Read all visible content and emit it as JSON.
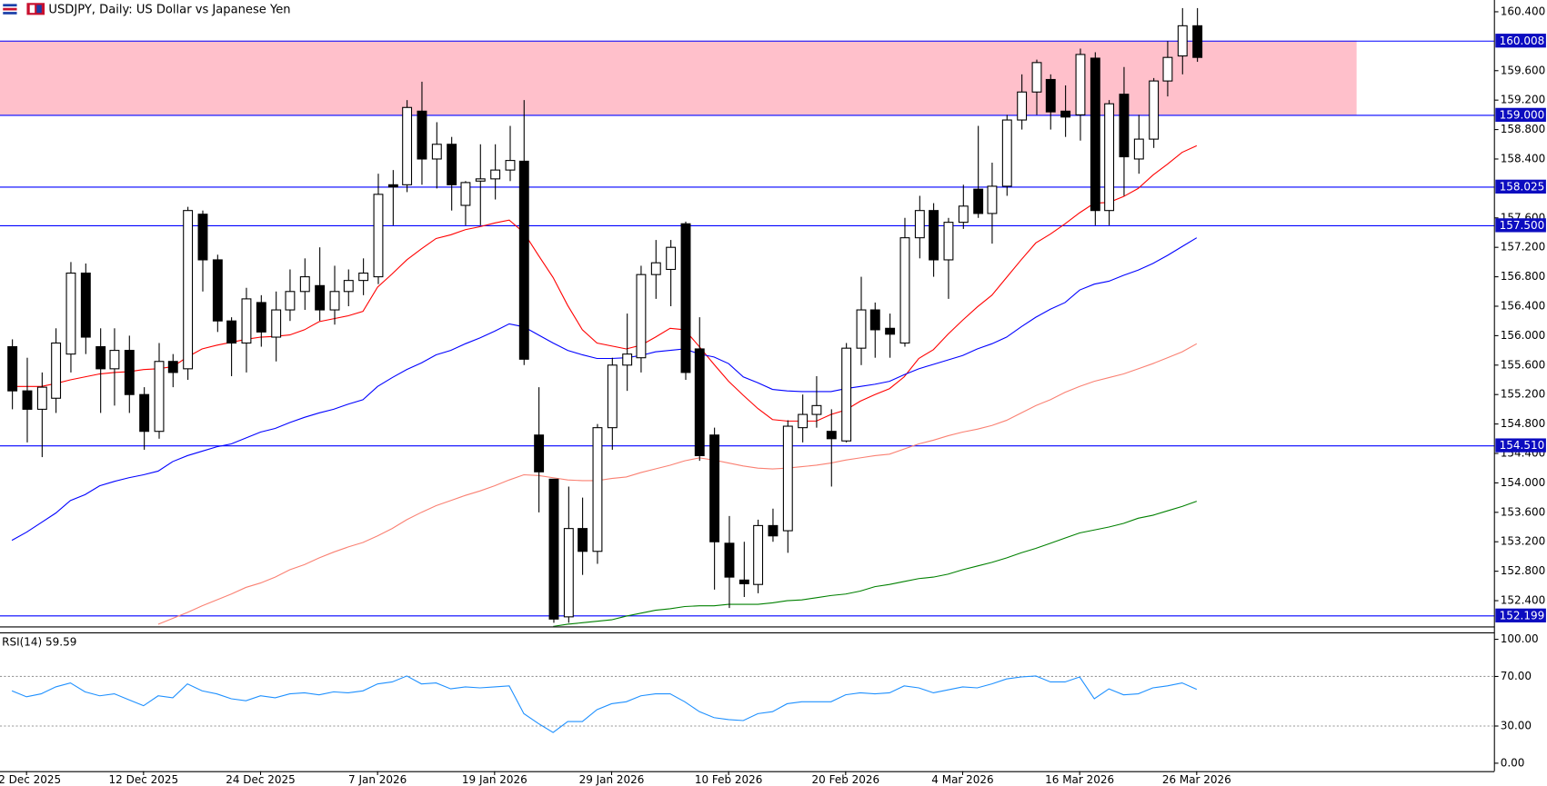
{
  "chart_data": [
    {
      "type": "candlestick",
      "title": "USDJPY, Daily:  US Dollar vs Japanese Yen",
      "categories": [
        null,
        "2 Dec 2025",
        null,
        null,
        null,
        null,
        null,
        null,
        null,
        "12 Dec 2025",
        null,
        null,
        null,
        null,
        null,
        null,
        null,
        "24 Dec 2025",
        null,
        null,
        null,
        null,
        null,
        null,
        null,
        "7 Jan 2026",
        null,
        null,
        null,
        null,
        null,
        null,
        null,
        "19 Jan 2026",
        null,
        null,
        null,
        null,
        null,
        null,
        null,
        "29 Jan 2026",
        null,
        null,
        null,
        null,
        null,
        null,
        null,
        "10 Feb 2026",
        null,
        null,
        null,
        null,
        null,
        null,
        null,
        "20 Feb 2026",
        null,
        null,
        null,
        null,
        null,
        null,
        null,
        "4 Mar 2026",
        null,
        null,
        null,
        null,
        null,
        null,
        null,
        "16 Mar 2026",
        null,
        null,
        null,
        null,
        null,
        null,
        null,
        "26 Mar 2026"
      ],
      "open": [
        155.85,
        155.25,
        155.0,
        155.15,
        155.75,
        156.85,
        155.85,
        155.55,
        155.8,
        155.2,
        154.7,
        155.65,
        155.55,
        157.65,
        157.03,
        156.2,
        155.9,
        156.45,
        155.98,
        156.35,
        156.6,
        156.68,
        156.35,
        156.6,
        156.75,
        156.8,
        158.05,
        158.05,
        159.05,
        158.4,
        158.6,
        157.77,
        158.1,
        158.13,
        158.25,
        158.37,
        154.65,
        154.05,
        152.18,
        153.38,
        153.07,
        154.75,
        155.6,
        155.7,
        156.83,
        156.9,
        157.52,
        155.82,
        154.65,
        153.18,
        152.68,
        152.62,
        153.42,
        153.35,
        154.75,
        154.93,
        154.7,
        154.57,
        155.83,
        156.35,
        156.1,
        155.9,
        157.33,
        157.7,
        157.03,
        157.54,
        157.99,
        157.66,
        158.03,
        158.93,
        159.31,
        159.48,
        159.05,
        159.0,
        159.77,
        157.7,
        159.28,
        158.4,
        158.67,
        159.46,
        159.8,
        160.21
      ],
      "high": [
        155.95,
        155.7,
        155.5,
        156.1,
        157.0,
        156.98,
        156.1,
        156.1,
        156.0,
        155.3,
        155.9,
        155.75,
        157.75,
        157.7,
        157.1,
        156.25,
        156.65,
        156.55,
        156.6,
        156.9,
        157.05,
        157.2,
        156.95,
        156.9,
        157.05,
        158.2,
        158.25,
        159.2,
        159.45,
        158.9,
        158.7,
        158.1,
        158.6,
        158.6,
        158.85,
        159.2,
        155.3,
        154.05,
        153.95,
        153.8,
        154.8,
        155.7,
        156.3,
        156.95,
        157.3,
        157.3,
        157.55,
        156.25,
        154.75,
        153.55,
        153.2,
        153.5,
        153.65,
        154.85,
        155.2,
        155.45,
        155.0,
        155.9,
        156.8,
        156.45,
        156.3,
        157.6,
        157.9,
        157.8,
        157.6,
        158.05,
        158.85,
        158.35,
        159.0,
        159.55,
        159.75,
        159.55,
        159.4,
        159.9,
        159.85,
        159.2,
        159.65,
        159.0,
        159.5,
        160.0,
        160.45,
        160.45
      ],
      "low": [
        155.0,
        154.55,
        154.35,
        154.95,
        155.5,
        155.75,
        154.95,
        155.05,
        154.95,
        154.45,
        154.6,
        155.3,
        155.4,
        156.6,
        156.05,
        155.45,
        155.5,
        155.85,
        155.65,
        156.2,
        156.35,
        156.2,
        156.15,
        156.4,
        156.55,
        156.7,
        157.5,
        157.95,
        158.05,
        158.0,
        157.7,
        157.5,
        157.5,
        157.85,
        158.1,
        155.6,
        153.6,
        152.1,
        152.1,
        152.75,
        152.9,
        154.45,
        155.25,
        155.5,
        156.5,
        156.4,
        155.4,
        154.3,
        152.55,
        152.3,
        152.45,
        152.5,
        153.2,
        153.05,
        154.55,
        154.75,
        153.95,
        154.55,
        155.6,
        155.7,
        155.7,
        155.85,
        157.05,
        156.8,
        156.5,
        157.45,
        157.6,
        157.25,
        157.9,
        158.8,
        159.0,
        158.8,
        158.7,
        158.65,
        157.5,
        157.5,
        157.9,
        158.2,
        158.55,
        159.25,
        159.55,
        159.72
      ],
      "close": [
        155.25,
        155.0,
        155.3,
        155.9,
        156.85,
        155.98,
        155.55,
        155.8,
        155.2,
        154.7,
        155.65,
        155.5,
        157.7,
        157.03,
        156.2,
        155.9,
        156.5,
        156.05,
        156.35,
        156.6,
        156.8,
        156.35,
        156.6,
        156.75,
        156.85,
        157.92,
        158.02,
        159.1,
        158.4,
        158.6,
        158.05,
        158.08,
        158.13,
        158.25,
        158.38,
        155.68,
        154.15,
        152.15,
        153.38,
        153.07,
        154.75,
        155.6,
        155.75,
        156.83,
        156.99,
        157.2,
        155.5,
        154.37,
        153.2,
        152.72,
        152.63,
        153.42,
        153.28,
        154.77,
        154.93,
        155.05,
        154.6,
        155.83,
        156.35,
        156.08,
        156.02,
        157.33,
        157.7,
        157.03,
        157.54,
        157.76,
        157.66,
        158.03,
        158.93,
        159.31,
        159.71,
        159.04,
        158.97,
        159.82,
        157.7,
        159.15,
        158.43,
        158.67,
        159.46,
        159.78,
        160.21,
        159.78
      ],
      "up_color": "#ffffff",
      "down_color": "#000000",
      "edge_color": "#000000",
      "series": [
        {
          "color": "#ff0000",
          "values": [
            155.31,
            155.31,
            155.31,
            155.35,
            155.4,
            155.44,
            155.48,
            155.5,
            155.51,
            155.54,
            155.55,
            155.58,
            155.71,
            155.82,
            155.87,
            155.91,
            155.95,
            155.98,
            155.99,
            156.01,
            156.08,
            156.19,
            156.23,
            156.27,
            156.33,
            156.66,
            156.84,
            157.03,
            157.18,
            157.32,
            157.37,
            157.44,
            157.48,
            157.53,
            157.57,
            157.4,
            157.09,
            156.79,
            156.41,
            156.08,
            155.9,
            155.86,
            155.82,
            155.87,
            155.98,
            156.1,
            156.08,
            155.85,
            155.61,
            155.38,
            155.19,
            155.01,
            154.86,
            154.84,
            154.84,
            154.84,
            154.93,
            154.99,
            155.11,
            155.2,
            155.28,
            155.44,
            155.69,
            155.81,
            156.02,
            156.21,
            156.39,
            156.55,
            156.79,
            157.03,
            157.26,
            157.38,
            157.52,
            157.67,
            157.8,
            157.81,
            157.89,
            158.0,
            158.18,
            158.33,
            158.49,
            158.58
          ]
        },
        {
          "color": "#0000ff",
          "values": [
            153.22,
            153.33,
            153.46,
            153.59,
            153.76,
            153.84,
            153.96,
            154.02,
            154.07,
            154.11,
            154.16,
            154.29,
            154.37,
            154.43,
            154.49,
            154.53,
            154.61,
            154.69,
            154.74,
            154.82,
            154.89,
            154.95,
            155.0,
            155.07,
            155.13,
            155.31,
            155.43,
            155.54,
            155.63,
            155.74,
            155.8,
            155.89,
            155.97,
            156.06,
            156.16,
            156.12,
            156.01,
            155.9,
            155.8,
            155.74,
            155.69,
            155.69,
            155.7,
            155.73,
            155.78,
            155.8,
            155.82,
            155.75,
            155.71,
            155.62,
            155.44,
            155.36,
            155.27,
            155.25,
            155.24,
            155.24,
            155.24,
            155.28,
            155.31,
            155.34,
            155.38,
            155.47,
            155.55,
            155.61,
            155.67,
            155.73,
            155.82,
            155.89,
            155.98,
            156.12,
            156.25,
            156.36,
            156.45,
            156.62,
            156.7,
            156.74,
            156.82,
            156.89,
            156.98,
            157.09,
            157.21,
            157.33
          ]
        },
        {
          "color": "#fa8072",
          "values": [
            null,
            null,
            null,
            null,
            null,
            null,
            null,
            null,
            null,
            null,
            152.08,
            152.16,
            152.24,
            152.33,
            152.41,
            152.49,
            152.58,
            152.64,
            152.72,
            152.82,
            152.89,
            152.98,
            153.06,
            153.13,
            153.19,
            153.28,
            153.38,
            153.5,
            153.6,
            153.69,
            153.76,
            153.83,
            153.89,
            153.96,
            154.04,
            154.11,
            154.1,
            154.07,
            154.04,
            154.03,
            154.03,
            154.06,
            154.08,
            154.14,
            154.19,
            154.24,
            154.3,
            154.34,
            154.31,
            154.27,
            154.23,
            154.2,
            154.19,
            154.2,
            154.22,
            154.24,
            154.27,
            154.31,
            154.34,
            154.37,
            154.39,
            154.46,
            154.53,
            154.58,
            154.64,
            154.69,
            154.73,
            154.78,
            154.85,
            154.95,
            155.05,
            155.13,
            155.23,
            155.31,
            155.38,
            155.43,
            155.48,
            155.55,
            155.62,
            155.7,
            155.78,
            155.89
          ]
        },
        {
          "color": "#008000",
          "values": [
            null,
            null,
            null,
            null,
            null,
            null,
            null,
            null,
            null,
            null,
            null,
            null,
            null,
            null,
            null,
            null,
            null,
            null,
            null,
            null,
            null,
            null,
            null,
            null,
            null,
            null,
            null,
            null,
            null,
            null,
            null,
            null,
            null,
            null,
            null,
            null,
            null,
            152.05,
            152.08,
            152.1,
            152.12,
            152.14,
            152.19,
            152.23,
            152.27,
            152.29,
            152.32,
            152.33,
            152.33,
            152.35,
            152.35,
            152.35,
            152.37,
            152.4,
            152.41,
            152.44,
            152.47,
            152.49,
            152.53,
            152.59,
            152.62,
            152.66,
            152.7,
            152.72,
            152.76,
            152.82,
            152.87,
            152.92,
            152.98,
            153.05,
            153.11,
            153.18,
            153.25,
            153.32,
            153.36,
            153.4,
            153.45,
            153.52,
            153.56,
            153.62,
            153.68,
            153.75
          ]
        }
      ],
      "zone": {
        "from": 159.0,
        "to": 160.008,
        "color": "#ffc0cb"
      },
      "levels": [
        160.008,
        {
          "value": 159.0,
          "label": "159.000"
        },
        158.025,
        {
          "value": 157.5,
          "label": "157.500"
        },
        {
          "value": 154.51,
          "label": "154.510"
        },
        152.199
      ],
      "level_color": "#0000ff",
      "level_label_color": "#0c0cc0",
      "ylim": [
        152.05,
        160.56
      ],
      "yticks": [
        {
          "value": 152.4,
          "label": "152.400"
        },
        {
          "value": 152.8,
          "label": "152.800"
        },
        {
          "value": 153.2,
          "label": "153.200"
        },
        {
          "value": 153.6,
          "label": "153.600"
        },
        {
          "value": 154.0,
          "label": "154.000"
        },
        {
          "value": 154.4,
          "label": "154.400"
        },
        {
          "value": 154.8,
          "label": "154.800"
        },
        {
          "value": 155.2,
          "label": "155.200"
        },
        {
          "value": 155.6,
          "label": "155.600"
        },
        {
          "value": 156.0,
          "label": "156.000"
        },
        {
          "value": 156.4,
          "label": "156.400"
        },
        {
          "value": 156.8,
          "label": "156.800"
        },
        {
          "value": 157.2,
          "label": "157.200"
        },
        {
          "value": 157.6,
          "label": "157.600"
        },
        {
          "value": 158.4,
          "label": "158.400"
        },
        {
          "value": 158.8,
          "label": "158.800"
        },
        {
          "value": 159.2,
          "label": "159.200"
        },
        {
          "value": 159.6,
          "label": "159.600"
        },
        {
          "value": 160.4,
          "label": "160.400"
        }
      ],
      "grid": false
    },
    {
      "type": "line",
      "title": "RSI(14) 59.59",
      "color": "#1e90ff",
      "values": [
        58.4,
        53.6,
        56,
        61.6,
        64.8,
        57.6,
        54.4,
        56,
        51.2,
        46.4,
        54.4,
        52.8,
        64,
        58.4,
        56,
        52,
        50.4,
        54.4,
        52.8,
        56,
        56.8,
        55.2,
        57.6,
        56.8,
        58.4,
        64,
        65.6,
        70.4,
        64,
        64.8,
        60,
        61.6,
        60.8,
        61.6,
        62.4,
        40,
        32,
        24.8,
        33.6,
        33.6,
        43.2,
        48,
        49.6,
        54.4,
        56,
        56,
        49.6,
        41.6,
        36.8,
        35.2,
        34.4,
        40,
        41.6,
        48,
        49.6,
        49.6,
        49.6,
        55.2,
        56.8,
        56,
        56.8,
        62.4,
        60.8,
        56.8,
        59.2,
        61.6,
        60.8,
        64,
        68,
        69.6,
        70.4,
        65.6,
        65.6,
        69.6,
        52,
        60,
        55.2,
        56,
        60.8,
        62.4,
        64.8,
        59.59
      ],
      "ylim": [
        0,
        100
      ],
      "yticks": [
        {
          "value": 100,
          "label": "100.00"
        },
        {
          "value": 70,
          "label": "70.00"
        },
        {
          "value": 30,
          "label": "30.00"
        },
        {
          "value": 0,
          "label": "0.00"
        }
      ]
    }
  ]
}
